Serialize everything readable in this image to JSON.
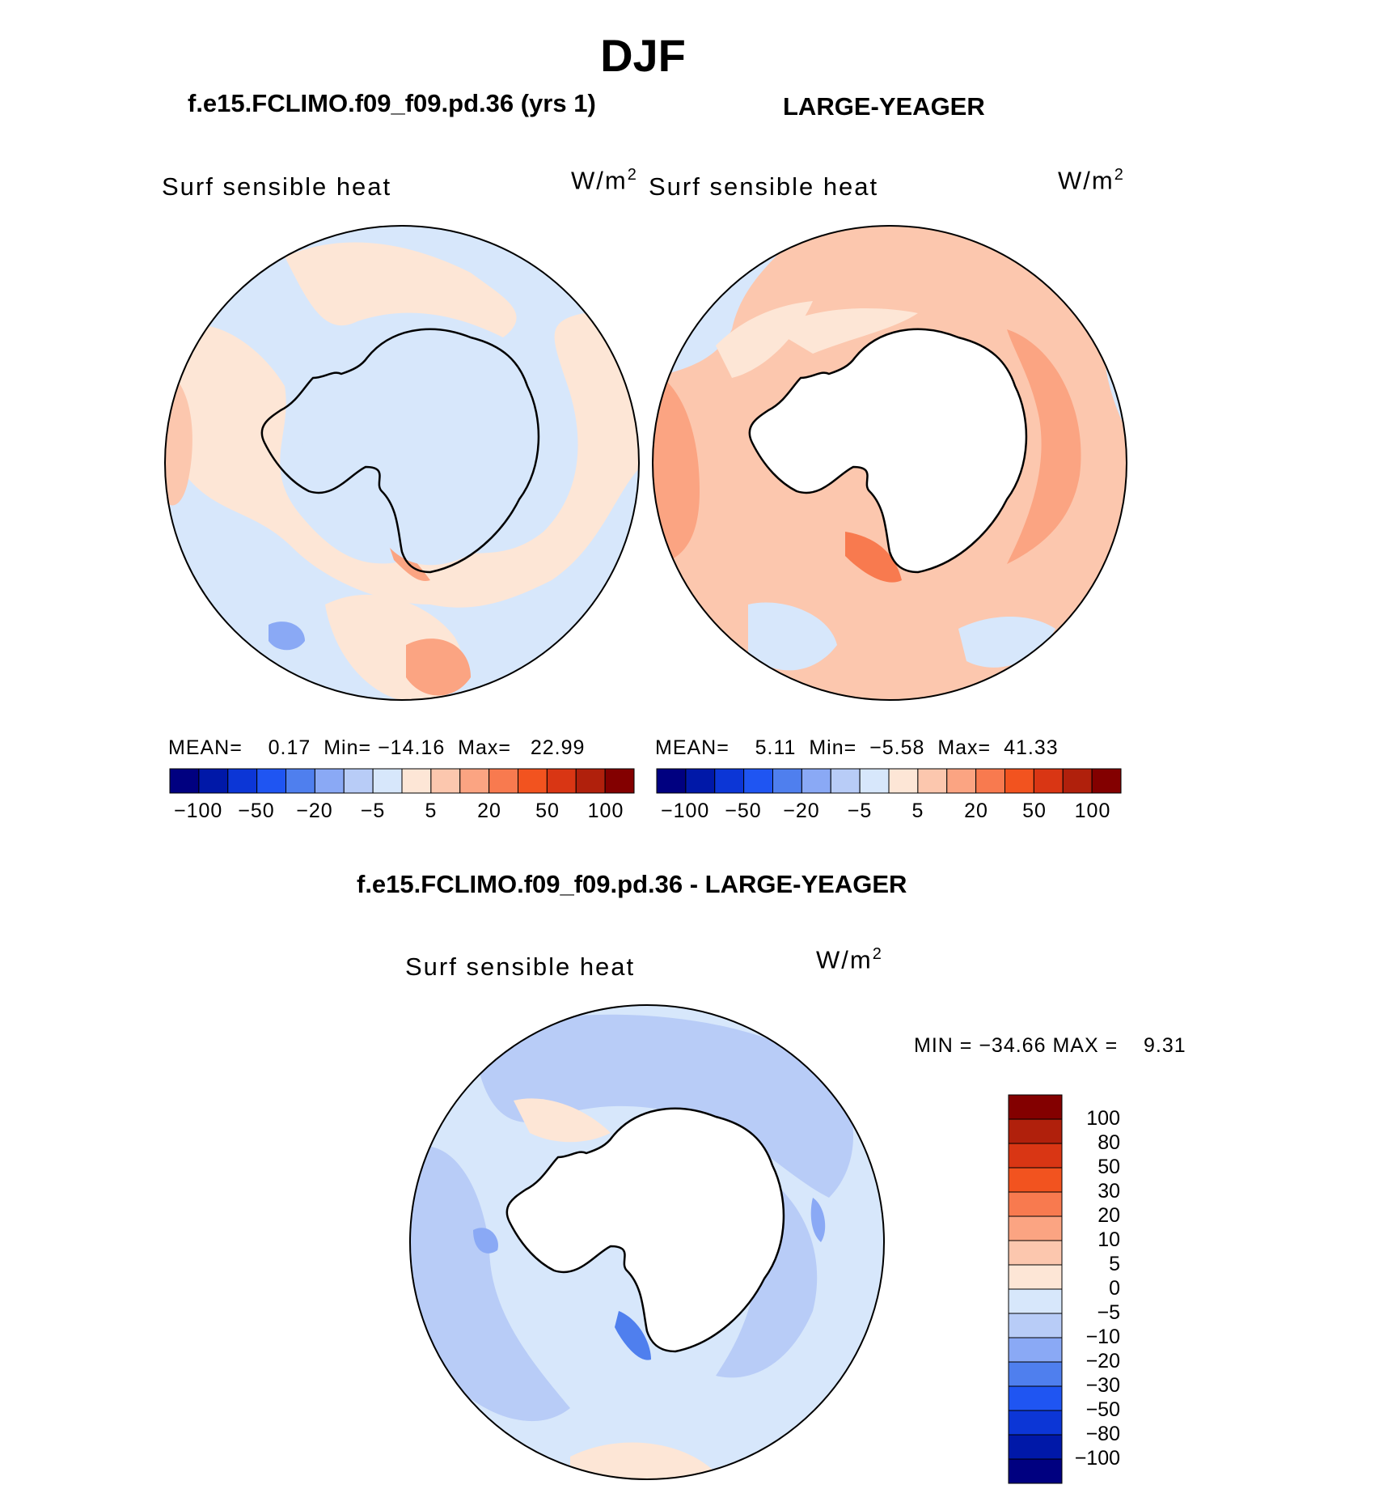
{
  "title": "DJF",
  "panels": [
    {
      "case_title": "f.e15.FCLIMO.f09_f09.pd.36 (yrs 1)",
      "variable": "Surf sensible heat",
      "units": "W/m",
      "units_exp": "2",
      "stats": {
        "mean_label": "MEAN=",
        "mean": "0.17",
        "min_label": "Min=",
        "min": "−14.16",
        "max_label": "Max=",
        "max": "22.99"
      },
      "ticks": [
        "−100",
        "−50",
        "−20",
        "−5",
        "5",
        "20",
        "50",
        "100"
      ]
    },
    {
      "case_title": "LARGE-YEAGER",
      "variable": "Surf sensible heat",
      "units": "W/m",
      "units_exp": "2",
      "stats": {
        "mean_label": "MEAN=",
        "mean": "5.11",
        "min_label": "Min=",
        "min": "−5.58",
        "max_label": "Max=",
        "max": "41.33"
      },
      "ticks": [
        "−100",
        "−50",
        "−20",
        "−5",
        "5",
        "20",
        "50",
        "100"
      ]
    }
  ],
  "diff": {
    "case_title": "f.e15.FCLIMO.f09_f09.pd.36 - LARGE-YEAGER",
    "variable": "Surf sensible heat",
    "units": "W/m",
    "units_exp": "2",
    "minmax": {
      "min_label": "MIN =",
      "min": "−34.66",
      "max_label": "MAX =",
      "max": "9.31"
    },
    "ticks": [
      "100",
      "80",
      "50",
      "30",
      "20",
      "10",
      "5",
      "0",
      "−5",
      "−10",
      "−20",
      "−30",
      "−50",
      "−80",
      "−100"
    ]
  },
  "colors": {
    "scale16": [
      "#000080",
      "#0018a8",
      "#0c36d6",
      "#1f55f2",
      "#4f7fee",
      "#8aa9f5",
      "#b8ccf7",
      "#d7e7fb",
      "#fde6d6",
      "#fcc7ae",
      "#fba482",
      "#f87a4f",
      "#f2531f",
      "#d93614",
      "#b0200c",
      "#830000"
    ],
    "scale16_diff": [
      "#000080",
      "#0018a8",
      "#0c36d6",
      "#1f55f2",
      "#4f7fee",
      "#8aa9f5",
      "#b8ccf7",
      "#d7e7fb",
      "#fde6d6",
      "#fcc7ae",
      "#fba482",
      "#f87a4f",
      "#f2531f",
      "#d93614",
      "#b0200c",
      "#830000"
    ]
  }
}
